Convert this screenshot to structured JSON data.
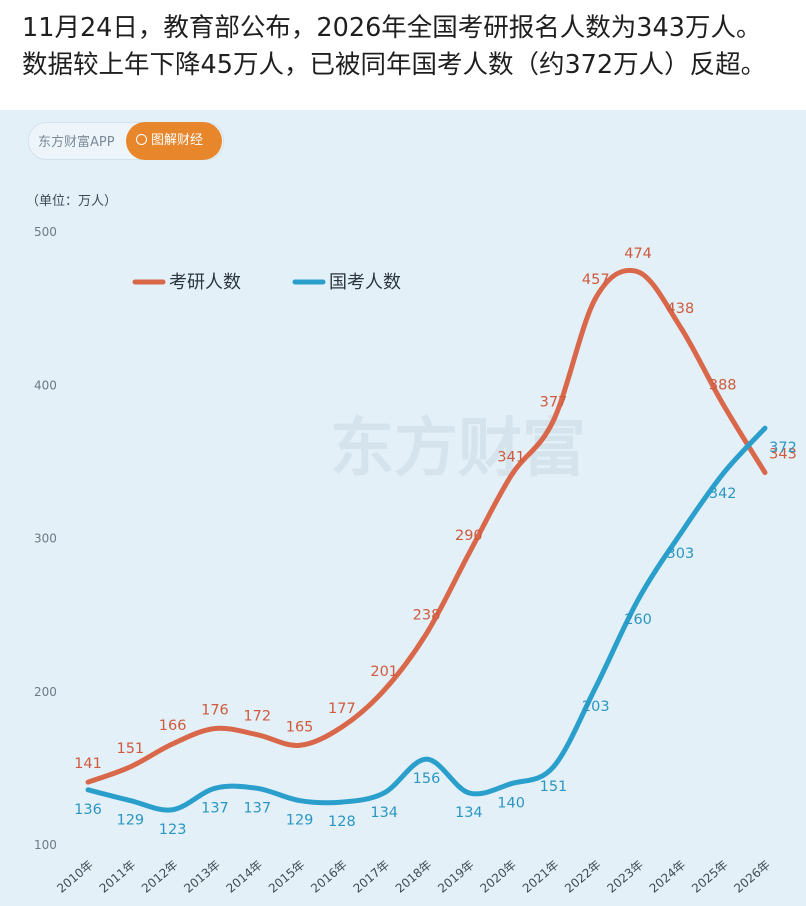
{
  "headline": {
    "line1": "11月24日，教育部公布，2026年全国考研报名人数为343万人。",
    "line2": "数据较上年下降45万人，已被同年国考人数（约372万人）反超。"
  },
  "brand": {
    "app_label": "东方财富APP",
    "button_label": "图解财经",
    "watermark": "东方财富"
  },
  "chart_data": {
    "type": "line",
    "unit_label": "（单位：万人）",
    "ylim": [
      100,
      500
    ],
    "yticks": [
      100,
      200,
      300,
      400,
      500
    ],
    "categories": [
      "2010年",
      "2011年",
      "2012年",
      "2013年",
      "2014年",
      "2015年",
      "2016年",
      "2017年",
      "2018年",
      "2019年",
      "2020年",
      "2021年",
      "2022年",
      "2023年",
      "2024年",
      "2025年",
      "2026年"
    ],
    "series": [
      {
        "name": "考研人数",
        "color": "#d9674a",
        "values": [
          141,
          151,
          166,
          176,
          172,
          165,
          177,
          201,
          238,
          290,
          341,
          377,
          457,
          474,
          438,
          388,
          343
        ]
      },
      {
        "name": "国考人数",
        "color": "#2a9fcc",
        "values": [
          136,
          129,
          123,
          137,
          137,
          129,
          128,
          134,
          156,
          134,
          140,
          151,
          203,
          260,
          303,
          342,
          372
        ]
      }
    ]
  }
}
